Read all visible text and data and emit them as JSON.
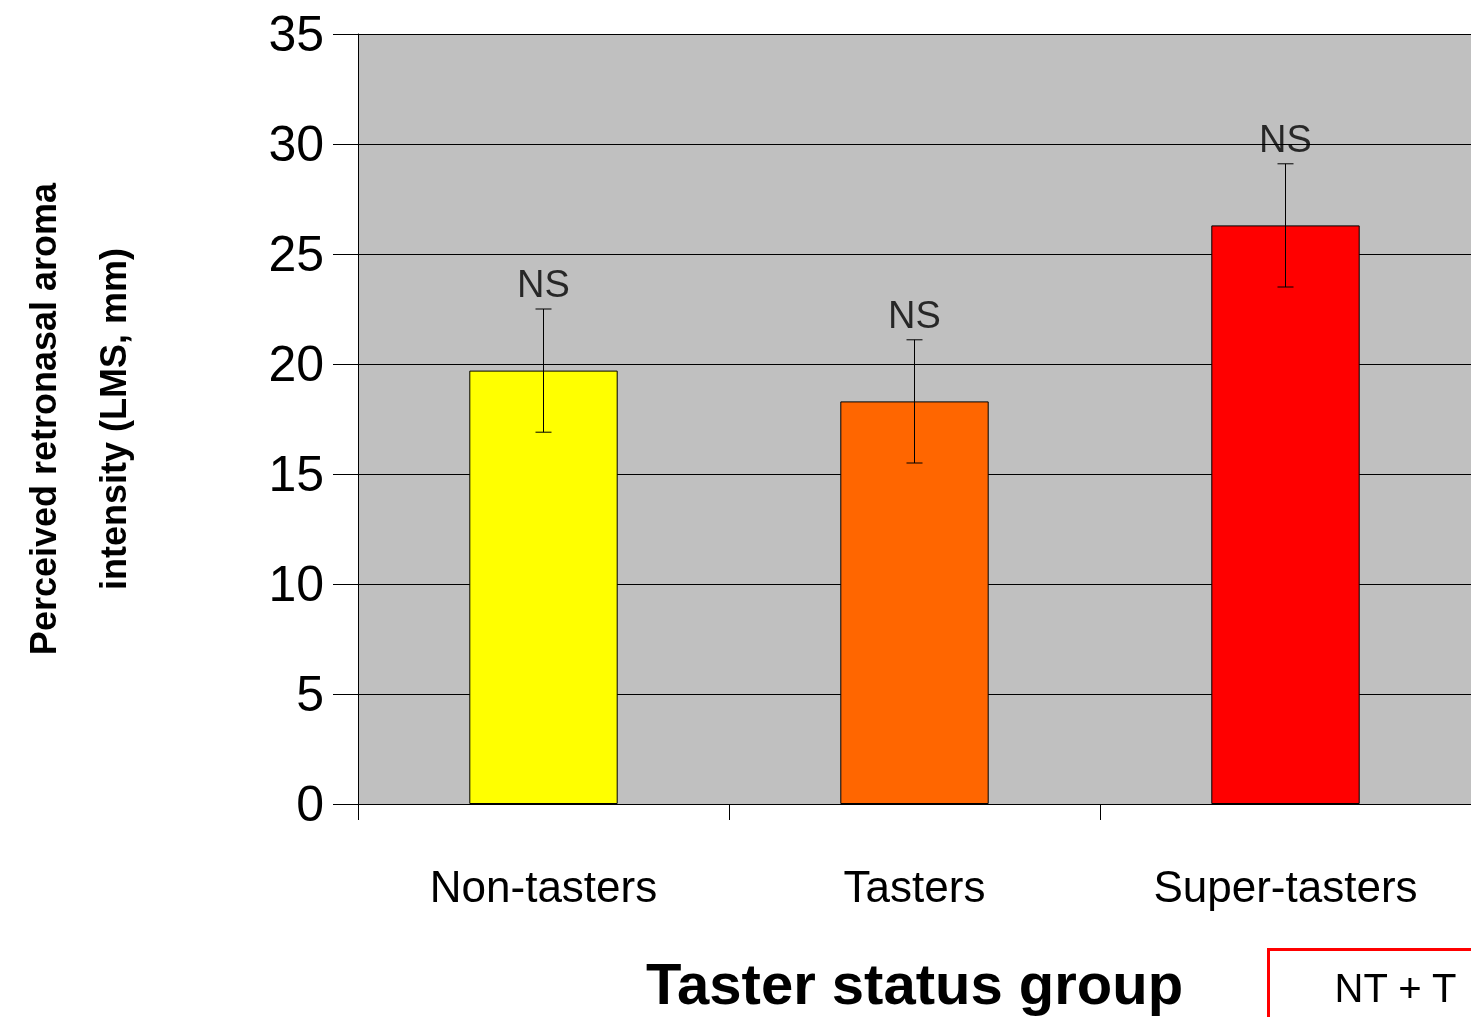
{
  "chart_data": {
    "type": "bar",
    "xlabel": "Taster status group",
    "ylabel": "Perceived retronasal aroma\nintensity (LMS, mm)",
    "categories": [
      "Non-tasters",
      "Tasters",
      "Super-tasters"
    ],
    "values": [
      19.7,
      18.3,
      26.3
    ],
    "colors": [
      "#ffff00",
      "#ff6600",
      "#ff0000"
    ],
    "errors": [
      2.8,
      2.8,
      2.8
    ],
    "ylim": [
      0,
      35
    ],
    "yticks": [
      0,
      5,
      10,
      15,
      20,
      25,
      30,
      35
    ],
    "grid": "y",
    "annotations": [
      "NS",
      "NS",
      "NS",
      "NT + T"
    ]
  }
}
